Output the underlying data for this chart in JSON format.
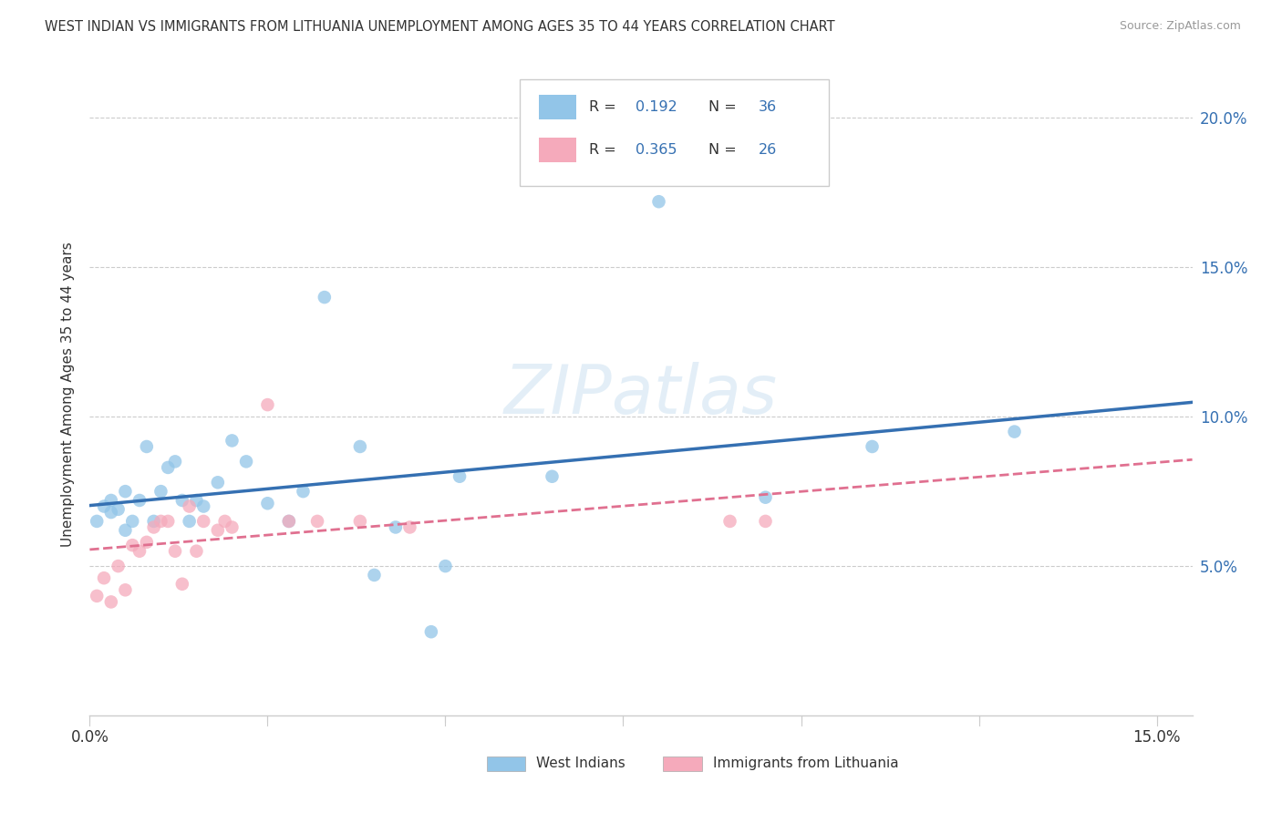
{
  "title": "WEST INDIAN VS IMMIGRANTS FROM LITHUANIA UNEMPLOYMENT AMONG AGES 35 TO 44 YEARS CORRELATION CHART",
  "source": "Source: ZipAtlas.com",
  "ylabel": "Unemployment Among Ages 35 to 44 years",
  "legend_label1": "West Indians",
  "legend_label2": "Immigrants from Lithuania",
  "xmin": 0.0,
  "xmax": 0.155,
  "ymin": 0.0,
  "ymax": 0.215,
  "x_tick_vals": [
    0.0,
    0.025,
    0.05,
    0.075,
    0.1,
    0.125,
    0.15
  ],
  "x_tick_labels": [
    "0.0%",
    "",
    "",
    "",
    "",
    "",
    "15.0%"
  ],
  "y_tick_vals": [
    0.05,
    0.1,
    0.15,
    0.2
  ],
  "y_tick_labels": [
    "5.0%",
    "10.0%",
    "15.0%",
    "20.0%"
  ],
  "watermark": "ZIPatlas",
  "R1": "0.192",
  "N1": "36",
  "R2": "0.365",
  "N2": "26",
  "color_blue": "#92C5E8",
  "color_pink": "#F5AABB",
  "color_line_blue": "#3570B2",
  "color_line_pink": "#E07090",
  "color_text_blue": "#3570B2",
  "color_text_dark": "#333333",
  "color_grid": "#cccccc",
  "color_source": "#999999",
  "marker_size": 110,
  "wi_x": [
    0.001,
    0.002,
    0.003,
    0.003,
    0.004,
    0.005,
    0.005,
    0.006,
    0.007,
    0.008,
    0.009,
    0.01,
    0.011,
    0.012,
    0.013,
    0.014,
    0.015,
    0.016,
    0.018,
    0.02,
    0.022,
    0.025,
    0.028,
    0.03,
    0.033,
    0.038,
    0.04,
    0.043,
    0.048,
    0.05,
    0.052,
    0.065,
    0.08,
    0.095,
    0.11,
    0.13
  ],
  "wi_y": [
    0.065,
    0.07,
    0.068,
    0.072,
    0.069,
    0.075,
    0.062,
    0.065,
    0.072,
    0.09,
    0.065,
    0.075,
    0.083,
    0.085,
    0.072,
    0.065,
    0.072,
    0.07,
    0.078,
    0.092,
    0.085,
    0.071,
    0.065,
    0.075,
    0.14,
    0.09,
    0.047,
    0.063,
    0.028,
    0.05,
    0.08,
    0.08,
    0.172,
    0.073,
    0.09,
    0.095
  ],
  "lt_x": [
    0.001,
    0.002,
    0.003,
    0.004,
    0.005,
    0.006,
    0.007,
    0.008,
    0.009,
    0.01,
    0.011,
    0.012,
    0.013,
    0.014,
    0.015,
    0.016,
    0.018,
    0.019,
    0.02,
    0.025,
    0.028,
    0.032,
    0.038,
    0.045,
    0.09,
    0.095
  ],
  "lt_y": [
    0.04,
    0.046,
    0.038,
    0.05,
    0.042,
    0.057,
    0.055,
    0.058,
    0.063,
    0.065,
    0.065,
    0.055,
    0.044,
    0.07,
    0.055,
    0.065,
    0.062,
    0.065,
    0.063,
    0.104,
    0.065,
    0.065,
    0.065,
    0.063,
    0.065,
    0.065
  ]
}
